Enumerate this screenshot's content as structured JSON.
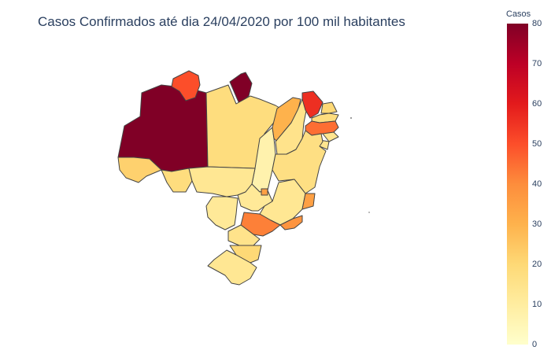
{
  "title": "Casos Confirmados até dia 24/04/2020 por 100 mil habitantes",
  "colorbar": {
    "title": "Casos",
    "ticks": [
      "80",
      "70",
      "60",
      "50",
      "40",
      "30",
      "20",
      "10",
      "0"
    ],
    "scale": [
      "#ffffcc",
      "#ffeda0",
      "#fed976",
      "#feb24c",
      "#fd8d3c",
      "#fc4e2a",
      "#e31a1c",
      "#bd0026",
      "#800026"
    ],
    "min": 0,
    "max": 80
  },
  "states": [
    {
      "id": "AM",
      "value": 80
    },
    {
      "id": "RR",
      "value": 50
    },
    {
      "id": "AP",
      "value": 80
    },
    {
      "id": "PA",
      "value": 18
    },
    {
      "id": "AC",
      "value": 22
    },
    {
      "id": "RO",
      "value": 18
    },
    {
      "id": "TO",
      "value": 7
    },
    {
      "id": "MA",
      "value": 30
    },
    {
      "id": "PI",
      "value": 15
    },
    {
      "id": "CE",
      "value": 56
    },
    {
      "id": "RN",
      "value": 20
    },
    {
      "id": "PB",
      "value": 18
    },
    {
      "id": "PE",
      "value": 45
    },
    {
      "id": "AL",
      "value": 14
    },
    {
      "id": "SE",
      "value": 14
    },
    {
      "id": "BA",
      "value": 17
    },
    {
      "id": "MT",
      "value": 13
    },
    {
      "id": "MS",
      "value": 12
    },
    {
      "id": "GO",
      "value": 12
    },
    {
      "id": "DF",
      "value": 35
    },
    {
      "id": "MG",
      "value": 13
    },
    {
      "id": "ES",
      "value": 35
    },
    {
      "id": "RJ",
      "value": 38
    },
    {
      "id": "SP",
      "value": 42
    },
    {
      "id": "PR",
      "value": 15
    },
    {
      "id": "SC",
      "value": 20
    },
    {
      "id": "RS",
      "value": 13
    }
  ]
}
